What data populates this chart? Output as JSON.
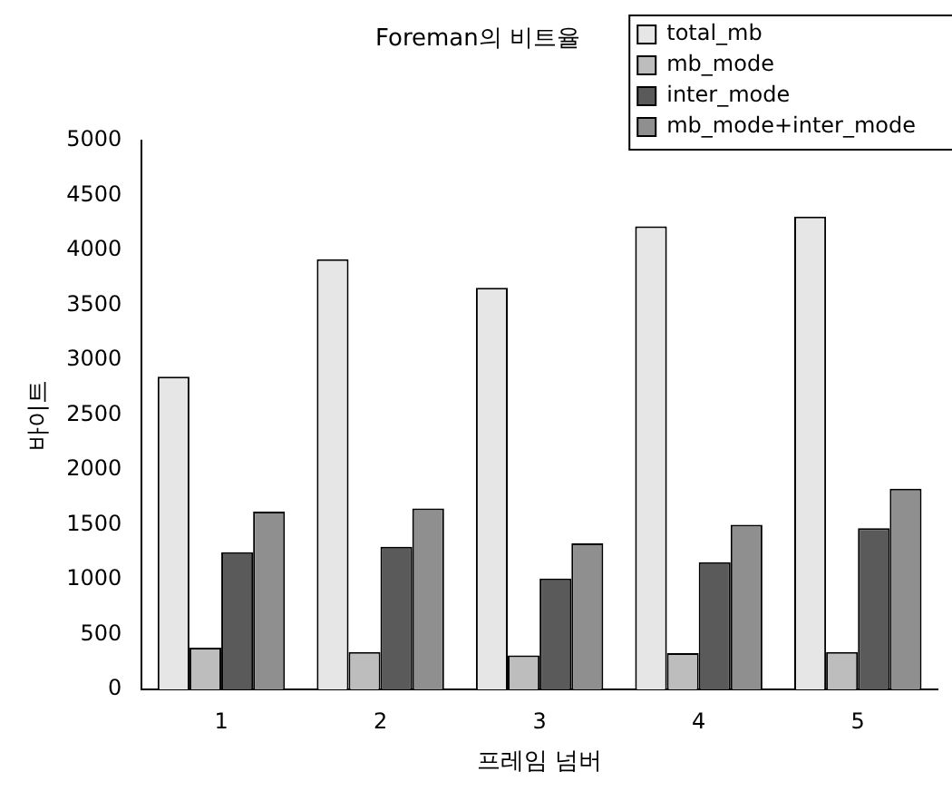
{
  "chart_data": {
    "type": "bar",
    "title": "Foreman의 비트율",
    "xlabel": "프레임 넘버",
    "ylabel": "바이트",
    "categories": [
      "1",
      "2",
      "3",
      "4",
      "5"
    ],
    "series": [
      {
        "name": "total_mb",
        "color": "#e6e6e6",
        "values": [
          2850,
          3920,
          3660,
          4220,
          4310
        ]
      },
      {
        "name": "mb_mode",
        "color": "#bdbdbd",
        "values": [
          380,
          340,
          310,
          330,
          340
        ]
      },
      {
        "name": "inter_mode",
        "color": "#5a5a5a",
        "values": [
          1250,
          1300,
          1010,
          1160,
          1470
        ]
      },
      {
        "name": "mb_mode+inter_mode",
        "color": "#8f8f8f",
        "values": [
          1620,
          1650,
          1330,
          1500,
          1830
        ]
      }
    ],
    "ylim": [
      0,
      5000
    ],
    "yticks": [
      0,
      500,
      1000,
      1500,
      2000,
      2500,
      3000,
      3500,
      4000,
      4500,
      5000
    ],
    "grid": false,
    "legend": "top right"
  }
}
